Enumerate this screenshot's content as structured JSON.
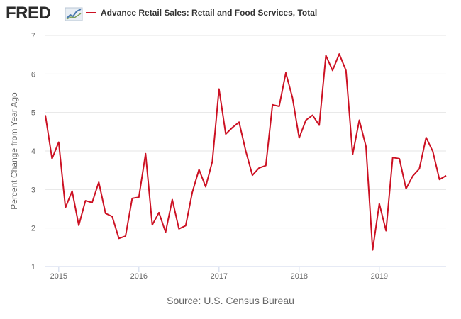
{
  "header": {
    "logo_text": "FRED",
    "logo_icon": "chart-line-icon",
    "legend_label": "Advance Retail Sales: Retail and Food Services, Total"
  },
  "source_text": "Source: U.S. Census Bureau",
  "colors": {
    "series": "#cc1123",
    "grid": "#e6e6e6",
    "text": "#666666"
  },
  "chart_data": {
    "type": "line",
    "ylabel": "Percent Change from Year Ago",
    "xlabel": "",
    "ylim": [
      1,
      7
    ],
    "yticks": [
      1,
      2,
      3,
      4,
      5,
      6,
      7
    ],
    "xlim": [
      "2014-11",
      "2019-11"
    ],
    "xticks": [
      "2015",
      "2016",
      "2017",
      "2018",
      "2019"
    ],
    "grid": true,
    "legend": "top",
    "series": [
      {
        "name": "Advance Retail Sales: Retail and Food Services, Total",
        "x": [
          "2014-11",
          "2014-12",
          "2015-01",
          "2015-02",
          "2015-03",
          "2015-04",
          "2015-05",
          "2015-06",
          "2015-07",
          "2015-08",
          "2015-09",
          "2015-10",
          "2015-11",
          "2015-12",
          "2016-01",
          "2016-02",
          "2016-03",
          "2016-04",
          "2016-05",
          "2016-06",
          "2016-07",
          "2016-08",
          "2016-09",
          "2016-10",
          "2016-11",
          "2016-12",
          "2017-01",
          "2017-02",
          "2017-03",
          "2017-04",
          "2017-05",
          "2017-06",
          "2017-07",
          "2017-08",
          "2017-09",
          "2017-10",
          "2017-11",
          "2017-12",
          "2018-01",
          "2018-02",
          "2018-03",
          "2018-04",
          "2018-05",
          "2018-06",
          "2018-07",
          "2018-08",
          "2018-09",
          "2018-10",
          "2018-11",
          "2018-12",
          "2019-01",
          "2019-02",
          "2019-03",
          "2019-04",
          "2019-05",
          "2019-06",
          "2019-07",
          "2019-08",
          "2019-09",
          "2019-10",
          "2019-11"
        ],
        "values": [
          4.93,
          3.8,
          4.23,
          2.53,
          2.96,
          2.07,
          2.71,
          2.66,
          3.19,
          2.38,
          2.3,
          1.73,
          1.79,
          2.77,
          2.8,
          3.93,
          2.08,
          2.4,
          1.89,
          2.74,
          1.98,
          2.06,
          2.93,
          3.52,
          3.07,
          3.73,
          5.61,
          4.44,
          4.61,
          4.75,
          4.0,
          3.37,
          3.56,
          3.62,
          5.2,
          5.16,
          6.03,
          5.38,
          4.34,
          4.8,
          4.93,
          4.67,
          6.48,
          6.09,
          6.52,
          6.09,
          3.91,
          4.8,
          4.12,
          1.43,
          2.63,
          1.93,
          3.83,
          3.8,
          3.02,
          3.35,
          3.54,
          4.35,
          3.99,
          3.26,
          3.36
        ]
      }
    ]
  }
}
